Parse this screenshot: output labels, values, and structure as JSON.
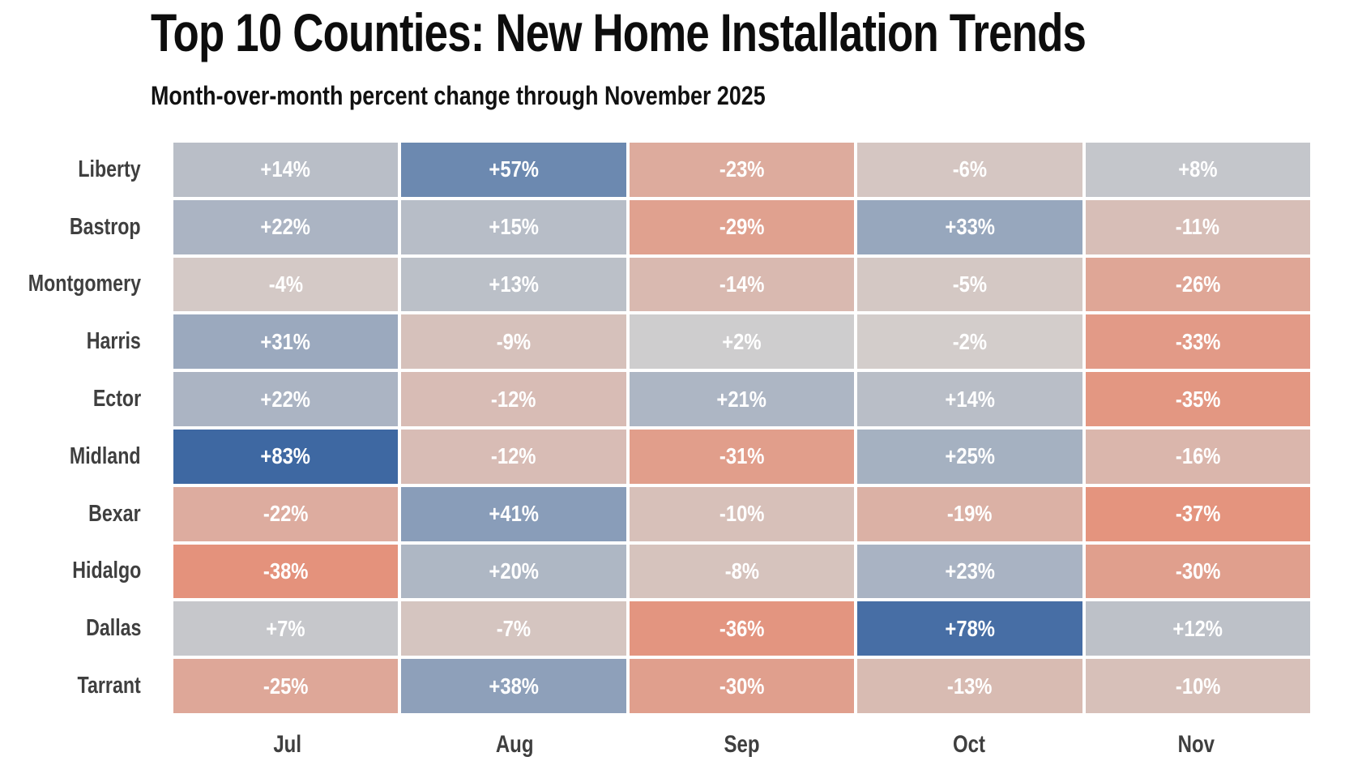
{
  "title": "Top 10 Counties: New Home Installation Trends",
  "subtitle": "Month-over-month percent change through November 2025",
  "chart_data": {
    "type": "heatmap",
    "title": "Top 10 Counties: New Home Installation Trends",
    "subtitle": "Month-over-month percent change through November 2025",
    "columns": [
      "Jul",
      "Aug",
      "Sep",
      "Oct",
      "Nov"
    ],
    "rows": [
      "Liberty",
      "Bastrop",
      "Montgomery",
      "Harris",
      "Ector",
      "Midland",
      "Bexar",
      "Hidalgo",
      "Dallas",
      "Tarrant"
    ],
    "values": [
      [
        14,
        57,
        -23,
        -6,
        8
      ],
      [
        22,
        15,
        -29,
        33,
        -11
      ],
      [
        -4,
        13,
        -14,
        -5,
        -26
      ],
      [
        31,
        -9,
        2,
        -2,
        -33
      ],
      [
        22,
        -12,
        21,
        14,
        -35
      ],
      [
        83,
        -12,
        -31,
        25,
        -16
      ],
      [
        -22,
        41,
        -10,
        -19,
        -37
      ],
      [
        -38,
        20,
        -8,
        23,
        -30
      ],
      [
        7,
        -7,
        -36,
        78,
        12
      ],
      [
        -25,
        38,
        -30,
        -13,
        -10
      ]
    ],
    "cell_label_format": "signed_percent",
    "legend": "none",
    "color_scale": {
      "type": "diverging",
      "domain": [
        -83,
        0,
        83
      ],
      "colors": [
        "#fa4919",
        "#d2d0cf",
        "#3e68a2"
      ]
    },
    "value_text_color": "#ffffff",
    "axis_label_color": "#3f3f3f",
    "title_color": "#0d0d0d",
    "background_color": "#ffffff",
    "grid_gap_color": "#ffffff"
  }
}
